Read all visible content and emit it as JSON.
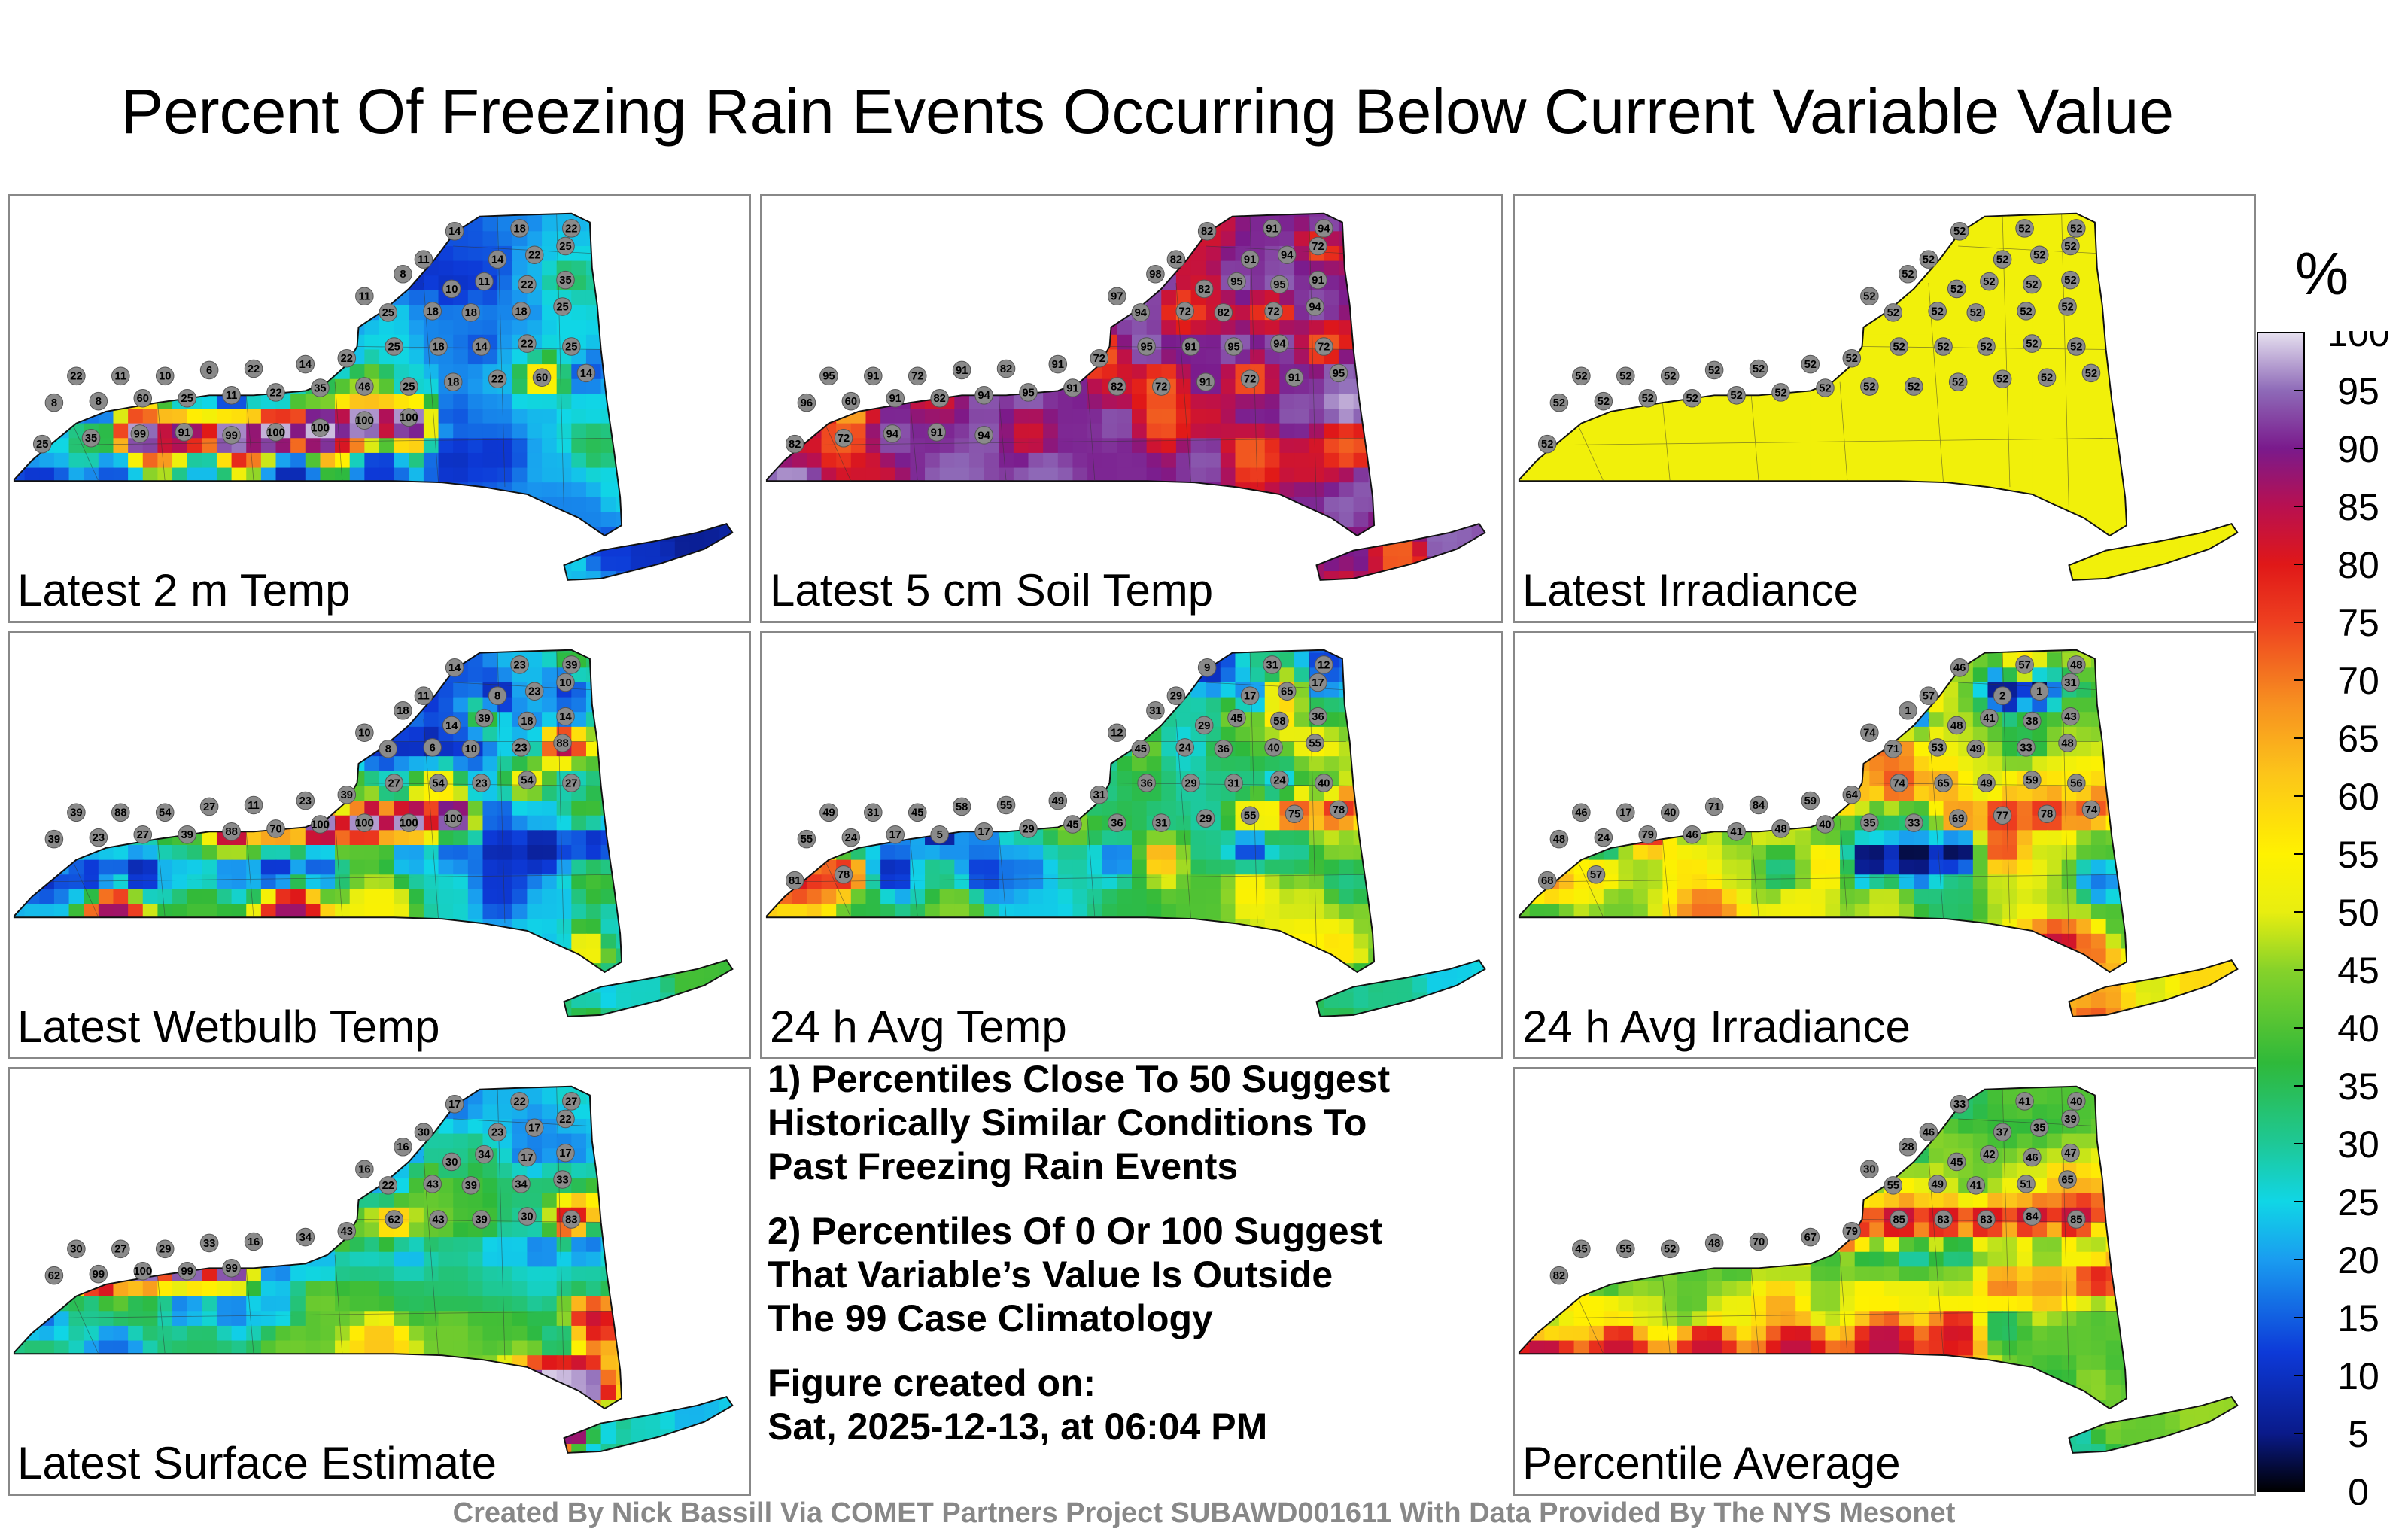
{
  "title": "Percent Of Freezing Rain Events Occurring Below Current Variable Value",
  "panels": [
    {
      "id": "p1",
      "label": "Latest 2 m Temp",
      "values": [
        14,
        18,
        22,
        25,
        11,
        14,
        22,
        8,
        11,
        10,
        11,
        22,
        35,
        25,
        18,
        18,
        18,
        25,
        22,
        11,
        10,
        6,
        22,
        14,
        22,
        25,
        18,
        14,
        22,
        25,
        8,
        8,
        60,
        25,
        11,
        22,
        35,
        46,
        25,
        18,
        22,
        60,
        14,
        25,
        35,
        99,
        91,
        99,
        100,
        100,
        100,
        100
      ]
    },
    {
      "id": "p2",
      "label": "Latest 5 cm Soil Temp",
      "values": [
        82,
        91,
        94,
        72,
        82,
        91,
        94,
        98,
        97,
        82,
        95,
        95,
        91,
        94,
        72,
        82,
        72,
        94,
        95,
        91,
        72,
        91,
        82,
        91,
        72,
        95,
        91,
        95,
        94,
        72,
        96,
        60,
        91,
        82,
        94,
        95,
        91,
        82,
        72,
        91,
        72,
        91,
        95,
        82,
        72,
        94,
        91,
        94
      ]
    },
    {
      "id": "p3",
      "label": "Latest Irradiance",
      "values": [
        52,
        52,
        52,
        52,
        52,
        52,
        52,
        52,
        52,
        52,
        52,
        52,
        52,
        52,
        52,
        52,
        52,
        52,
        52,
        52,
        52,
        52,
        52,
        52,
        52,
        52,
        52,
        52,
        52,
        52,
        52,
        52,
        52,
        52,
        52,
        52,
        52,
        52,
        52,
        52,
        52,
        52,
        52,
        52
      ]
    },
    {
      "id": "p4",
      "label": "Latest Wetbulb Temp",
      "values": [
        14,
        23,
        39,
        10,
        11,
        8,
        23,
        18,
        10,
        14,
        39,
        18,
        14,
        8,
        6,
        10,
        23,
        88,
        39,
        88,
        54,
        27,
        11,
        23,
        39,
        27,
        54,
        23,
        54,
        27,
        39,
        23,
        27,
        39,
        88,
        70,
        100,
        100,
        100,
        100
      ]
    },
    {
      "id": "p5",
      "label": "24 h Avg Temp",
      "values": [
        9,
        31,
        12,
        17,
        29,
        17,
        65,
        31,
        12,
        29,
        45,
        58,
        36,
        45,
        24,
        36,
        40,
        55,
        49,
        31,
        45,
        58,
        55,
        49,
        31,
        36,
        29,
        31,
        24,
        40,
        55,
        24,
        17,
        5,
        17,
        29,
        45,
        36,
        31,
        29,
        55,
        75,
        78,
        81,
        78
      ]
    },
    {
      "id": "p6",
      "label": "24 h Avg Irradiance",
      "values": [
        46,
        57,
        48,
        31,
        57,
        2,
        1,
        1,
        74,
        48,
        41,
        38,
        43,
        71,
        53,
        49,
        33,
        48,
        46,
        17,
        40,
        71,
        84,
        59,
        64,
        74,
        65,
        49,
        59,
        56,
        48,
        24,
        79,
        46,
        41,
        48,
        40,
        35,
        33,
        69,
        77,
        78,
        74,
        68,
        57
      ]
    },
    {
      "id": "p7",
      "label": "Latest Surface Estimate",
      "values": [
        17,
        22,
        27,
        22,
        30,
        23,
        17,
        16,
        16,
        30,
        34,
        17,
        17,
        22,
        43,
        39,
        34,
        33,
        30,
        27,
        29,
        33,
        16,
        34,
        43,
        62,
        43,
        39,
        30,
        83,
        62,
        99,
        100,
        99,
        99
      ]
    },
    {
      "id": "p8",
      "label": "Percentile Average",
      "values": [
        33,
        41,
        40,
        39,
        46,
        37,
        35,
        28,
        30,
        45,
        42,
        46,
        47,
        55,
        49,
        41,
        51,
        65,
        45,
        55,
        52,
        48,
        70,
        67,
        79,
        85,
        83,
        83,
        84,
        85,
        82
      ]
    }
  ],
  "notes": {
    "line1": "1) Percentiles Close To 50 Suggest",
    "line2": "Historically Similar Conditions To",
    "line3": "Past Freezing Rain Events",
    "line4": "2) Percentiles Of 0 Or 100 Suggest",
    "line5": "That Variable’s Value Is Outside",
    "line6": "The 99 Case Climatology",
    "line7": "Figure created on:",
    "line8": "Sat, 2025-12-13, at 06:04 PM"
  },
  "colorbar": {
    "unit": "%",
    "ticks": [
      "100",
      "95",
      "90",
      "85",
      "80",
      "75",
      "70",
      "65",
      "60",
      "55",
      "50",
      "45",
      "40",
      "35",
      "30",
      "25",
      "20",
      "15",
      "10",
      "5",
      "0"
    ],
    "stops": [
      "#e9e3f1",
      "#b9a6d3",
      "#6d2f9a",
      "#b01060",
      "#e62020",
      "#f07020",
      "#f7a01e",
      "#fff200",
      "#b2de22",
      "#34b234",
      "#19c6a0",
      "#10c8e8",
      "#1090f0",
      "#1040e0",
      "#0018a0",
      "#000000"
    ]
  },
  "credit": "Created By Nick Bassill Via COMET Partners Project SUBAWD001611 With Data Provided By The NYS Mesonet",
  "chart_data": {
    "type": "heatmap",
    "title": "Percent Of Freezing Rain Events Occurring Below Current Variable Value",
    "colorbar_label": "%",
    "colorbar_range": [
      0,
      100
    ],
    "colorbar_ticks": [
      0,
      5,
      10,
      15,
      20,
      25,
      30,
      35,
      40,
      45,
      50,
      55,
      60,
      65,
      70,
      75,
      80,
      85,
      90,
      95,
      100
    ],
    "panels": [
      "Latest 2 m Temp",
      "Latest 5 cm Soil Temp",
      "Latest Irradiance",
      "Latest Wetbulb Temp",
      "24 h Avg Temp",
      "24 h Avg Irradiance",
      "Latest Surface Estimate",
      "Percentile Average"
    ]
  }
}
